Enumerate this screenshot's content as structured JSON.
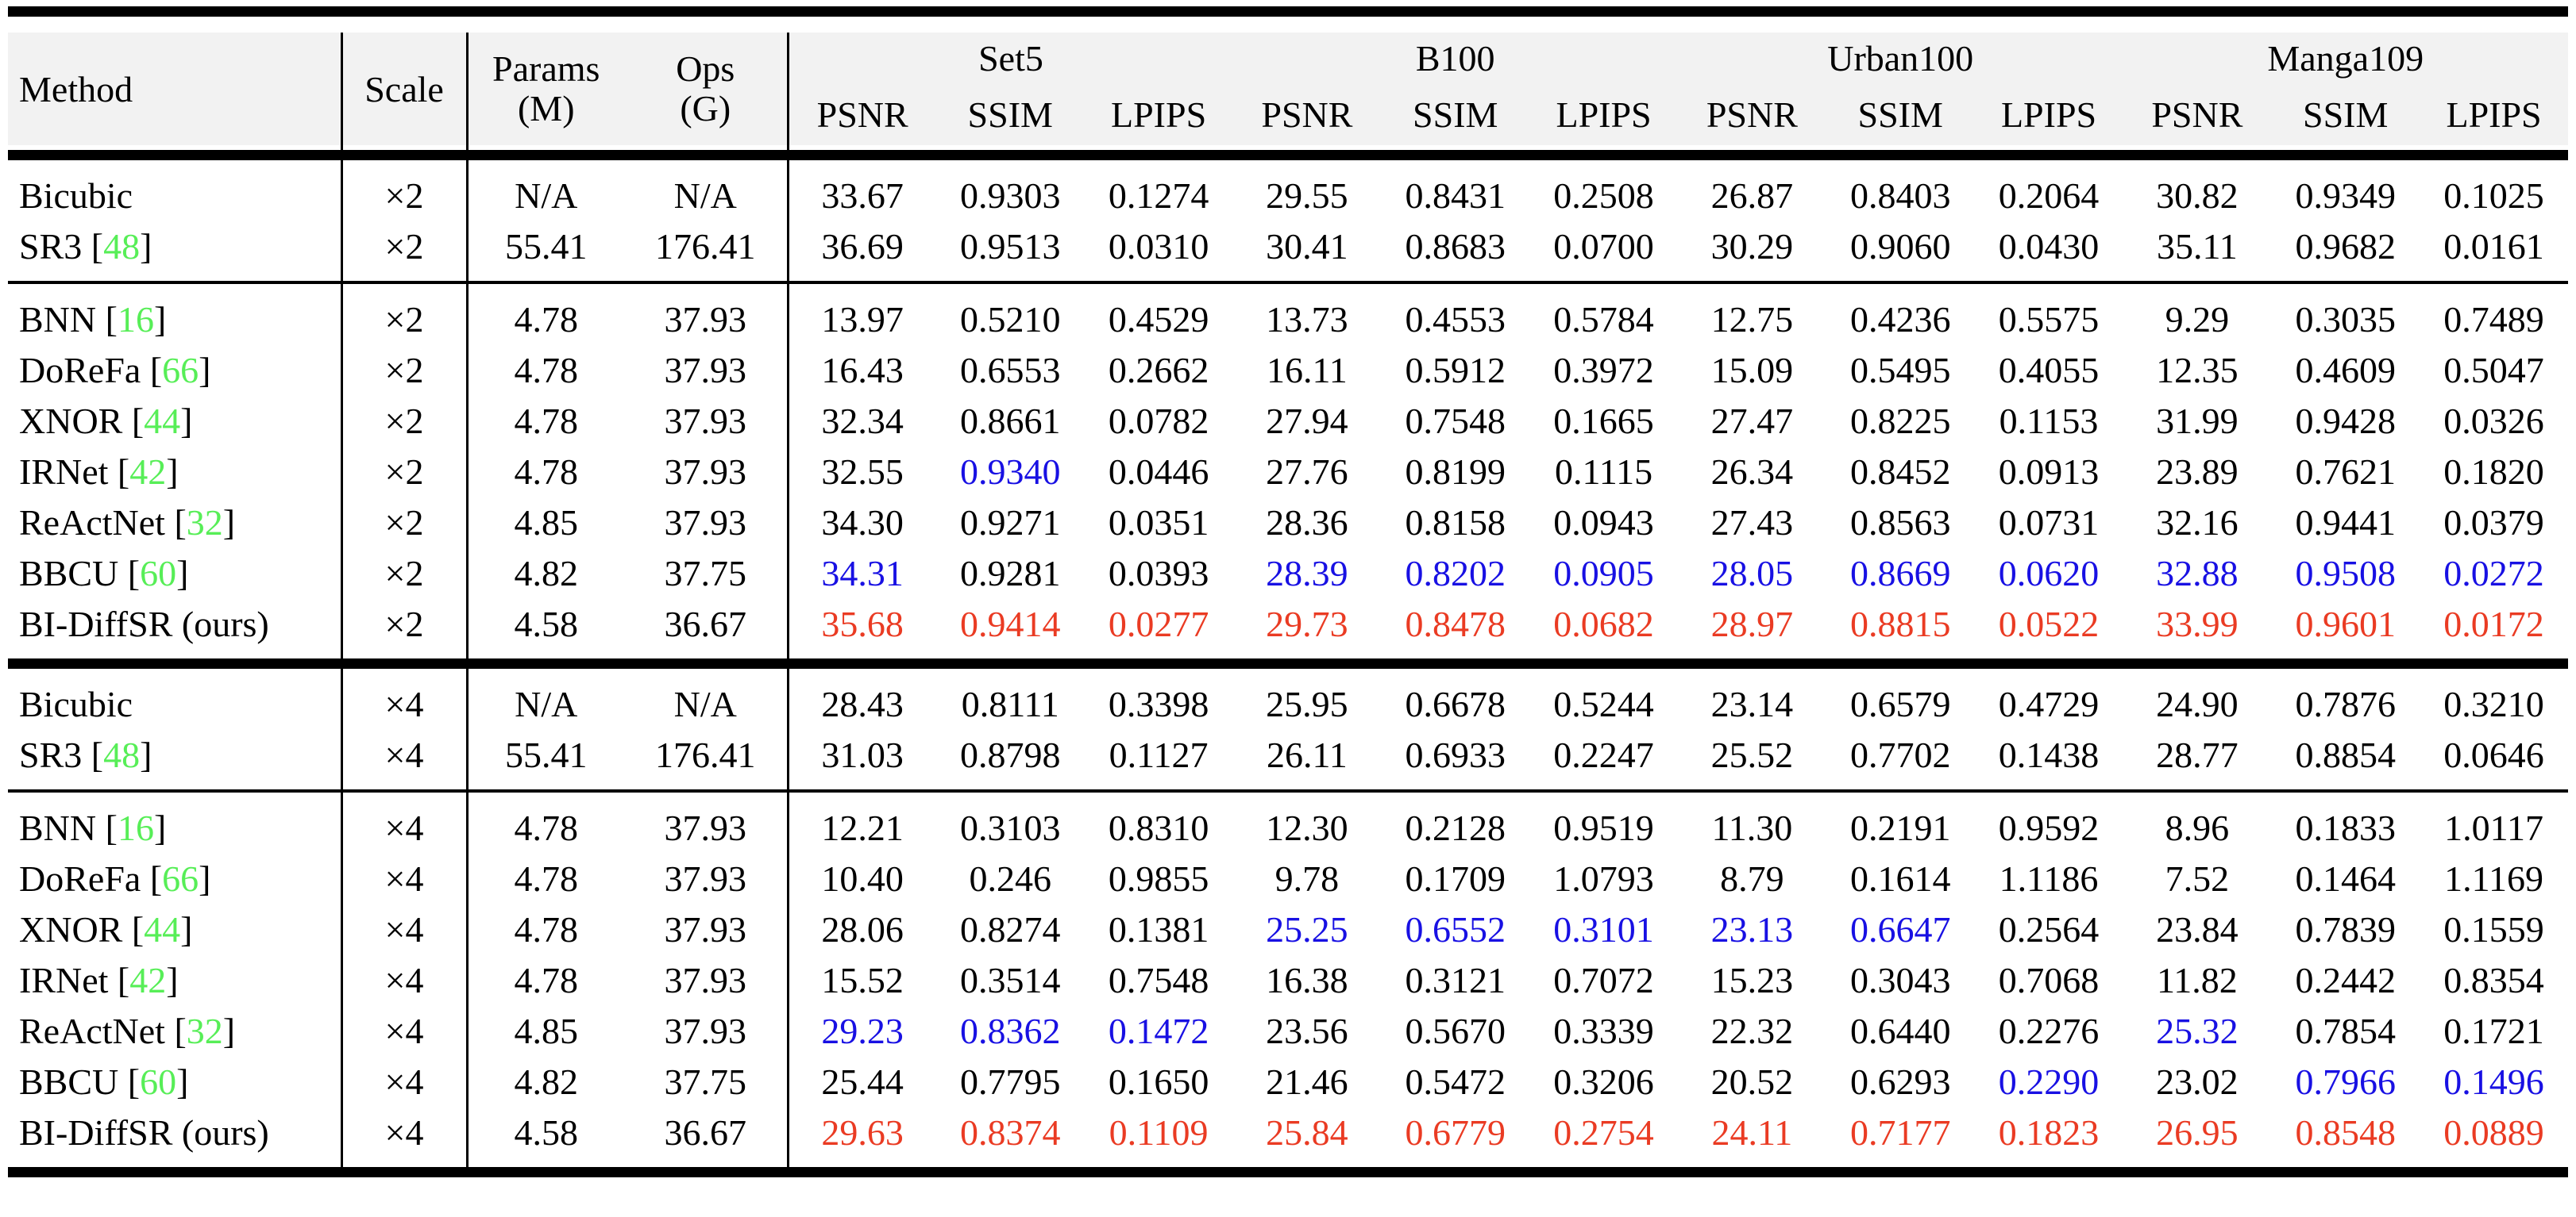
{
  "colors": {
    "best_red": "#ea3b23",
    "second_blue": "#1810e3",
    "citation_green": "#57ee57",
    "header_bg": "#f2f2f2",
    "rule_black": "#000000",
    "page_bg": "#ffffff"
  },
  "table": {
    "header": {
      "method": "Method",
      "scale": "Scale",
      "params_line1": "Params",
      "params_line2": "(M)",
      "ops_line1": "Ops",
      "ops_line2": "(G)",
      "datasets": [
        "Set5",
        "B100",
        "Urban100",
        "Manga109"
      ],
      "metrics": [
        "PSNR",
        "SSIM",
        "LPIPS"
      ]
    },
    "groups": [
      {
        "rule_after": "thin",
        "rows": [
          {
            "method": "Bicubic",
            "cite": null,
            "scale": "×2",
            "params": "N/A",
            "ops": "N/A",
            "values": [
              "33.67",
              "0.9303",
              "0.1274",
              "29.55",
              "0.8431",
              "0.2508",
              "26.87",
              "0.8403",
              "0.2064",
              "30.82",
              "0.9349",
              "0.1025"
            ],
            "styles": [
              "",
              "",
              "",
              "",
              "",
              "",
              "",
              "",
              "",
              "",
              "",
              ""
            ]
          },
          {
            "method": "SR3",
            "cite": "48",
            "scale": "×2",
            "params": "55.41",
            "ops": "176.41",
            "values": [
              "36.69",
              "0.9513",
              "0.0310",
              "30.41",
              "0.8683",
              "0.0700",
              "30.29",
              "0.9060",
              "0.0430",
              "35.11",
              "0.9682",
              "0.0161"
            ],
            "styles": [
              "",
              "",
              "",
              "",
              "",
              "",
              "",
              "",
              "",
              "",
              "",
              ""
            ]
          }
        ]
      },
      {
        "rule_after": "thick",
        "rows": [
          {
            "method": "BNN",
            "cite": "16",
            "scale": "×2",
            "params": "4.78",
            "ops": "37.93",
            "values": [
              "13.97",
              "0.5210",
              "0.4529",
              "13.73",
              "0.4553",
              "0.5784",
              "12.75",
              "0.4236",
              "0.5575",
              "9.29",
              "0.3035",
              "0.7489"
            ],
            "styles": [
              "",
              "",
              "",
              "",
              "",
              "",
              "",
              "",
              "",
              "",
              "",
              ""
            ]
          },
          {
            "method": "DoReFa",
            "cite": "66",
            "scale": "×2",
            "params": "4.78",
            "ops": "37.93",
            "values": [
              "16.43",
              "0.6553",
              "0.2662",
              "16.11",
              "0.5912",
              "0.3972",
              "15.09",
              "0.5495",
              "0.4055",
              "12.35",
              "0.4609",
              "0.5047"
            ],
            "styles": [
              "",
              "",
              "",
              "",
              "",
              "",
              "",
              "",
              "",
              "",
              "",
              ""
            ]
          },
          {
            "method": "XNOR",
            "cite": "44",
            "scale": "×2",
            "params": "4.78",
            "ops": "37.93",
            "values": [
              "32.34",
              "0.8661",
              "0.0782",
              "27.94",
              "0.7548",
              "0.1665",
              "27.47",
              "0.8225",
              "0.1153",
              "31.99",
              "0.9428",
              "0.0326"
            ],
            "styles": [
              "",
              "",
              "",
              "",
              "",
              "",
              "",
              "",
              "",
              "",
              "",
              ""
            ]
          },
          {
            "method": "IRNet",
            "cite": "42",
            "scale": "×2",
            "params": "4.78",
            "ops": "37.93",
            "values": [
              "32.55",
              "0.9340",
              "0.0446",
              "27.76",
              "0.8199",
              "0.1115",
              "26.34",
              "0.8452",
              "0.0913",
              "23.89",
              "0.7621",
              "0.1820"
            ],
            "styles": [
              "",
              "b",
              "",
              "",
              "",
              "",
              "",
              "",
              "",
              "",
              "",
              ""
            ]
          },
          {
            "method": "ReActNet",
            "cite": "32",
            "scale": "×2",
            "params": "4.85",
            "ops": "37.93",
            "values": [
              "34.30",
              "0.9271",
              "0.0351",
              "28.36",
              "0.8158",
              "0.0943",
              "27.43",
              "0.8563",
              "0.0731",
              "32.16",
              "0.9441",
              "0.0379"
            ],
            "styles": [
              "",
              "",
              "",
              "",
              "",
              "",
              "",
              "",
              "",
              "",
              "",
              ""
            ]
          },
          {
            "method": "BBCU",
            "cite": "60",
            "scale": "×2",
            "params": "4.82",
            "ops": "37.75",
            "values": [
              "34.31",
              "0.9281",
              "0.0393",
              "28.39",
              "0.8202",
              "0.0905",
              "28.05",
              "0.8669",
              "0.0620",
              "32.88",
              "0.9508",
              "0.0272"
            ],
            "styles": [
              "b",
              "",
              "",
              "b",
              "b",
              "b",
              "b",
              "b",
              "b",
              "b",
              "b",
              "b"
            ]
          },
          {
            "method": "BI-DiffSR (ours)",
            "cite": null,
            "scale": "×2",
            "params": "4.58",
            "ops": "36.67",
            "values": [
              "35.68",
              "0.9414",
              "0.0277",
              "29.73",
              "0.8478",
              "0.0682",
              "28.97",
              "0.8815",
              "0.0522",
              "33.99",
              "0.9601",
              "0.0172"
            ],
            "styles": [
              "r",
              "r",
              "r",
              "r",
              "r",
              "r",
              "r",
              "r",
              "r",
              "r",
              "r",
              "r"
            ]
          }
        ]
      },
      {
        "rule_after": "thin",
        "rows": [
          {
            "method": "Bicubic",
            "cite": null,
            "scale": "×4",
            "params": "N/A",
            "ops": "N/A",
            "values": [
              "28.43",
              "0.8111",
              "0.3398",
              "25.95",
              "0.6678",
              "0.5244",
              "23.14",
              "0.6579",
              "0.4729",
              "24.90",
              "0.7876",
              "0.3210"
            ],
            "styles": [
              "",
              "",
              "",
              "",
              "",
              "",
              "",
              "",
              "",
              "",
              "",
              ""
            ]
          },
          {
            "method": "SR3",
            "cite": "48",
            "scale": "×4",
            "params": "55.41",
            "ops": "176.41",
            "values": [
              "31.03",
              "0.8798",
              "0.1127",
              "26.11",
              "0.6933",
              "0.2247",
              "25.52",
              "0.7702",
              "0.1438",
              "28.77",
              "0.8854",
              "0.0646"
            ],
            "styles": [
              "",
              "",
              "",
              "",
              "",
              "",
              "",
              "",
              "",
              "",
              "",
              ""
            ]
          }
        ]
      },
      {
        "rule_after": "thick",
        "rows": [
          {
            "method": "BNN",
            "cite": "16",
            "scale": "×4",
            "params": "4.78",
            "ops": "37.93",
            "values": [
              "12.21",
              "0.3103",
              "0.8310",
              "12.30",
              "0.2128",
              "0.9519",
              "11.30",
              "0.2191",
              "0.9592",
              "8.96",
              "0.1833",
              "1.0117"
            ],
            "styles": [
              "",
              "",
              "",
              "",
              "",
              "",
              "",
              "",
              "",
              "",
              "",
              ""
            ]
          },
          {
            "method": "DoReFa",
            "cite": "66",
            "scale": "×4",
            "params": "4.78",
            "ops": "37.93",
            "values": [
              "10.40",
              "0.246",
              "0.9855",
              "9.78",
              "0.1709",
              "1.0793",
              "8.79",
              "0.1614",
              "1.1186",
              "7.52",
              "0.1464",
              "1.1169"
            ],
            "styles": [
              "",
              "",
              "",
              "",
              "",
              "",
              "",
              "",
              "",
              "",
              "",
              ""
            ]
          },
          {
            "method": "XNOR",
            "cite": "44",
            "scale": "×4",
            "params": "4.78",
            "ops": "37.93",
            "values": [
              "28.06",
              "0.8274",
              "0.1381",
              "25.25",
              "0.6552",
              "0.3101",
              "23.13",
              "0.6647",
              "0.2564",
              "23.84",
              "0.7839",
              "0.1559"
            ],
            "styles": [
              "",
              "",
              "",
              "b",
              "b",
              "b",
              "b",
              "b",
              "",
              "",
              "",
              ""
            ]
          },
          {
            "method": "IRNet",
            "cite": "42",
            "scale": "×4",
            "params": "4.78",
            "ops": "37.93",
            "values": [
              "15.52",
              "0.3514",
              "0.7548",
              "16.38",
              "0.3121",
              "0.7072",
              "15.23",
              "0.3043",
              "0.7068",
              "11.82",
              "0.2442",
              "0.8354"
            ],
            "styles": [
              "",
              "",
              "",
              "",
              "",
              "",
              "",
              "",
              "",
              "",
              "",
              ""
            ]
          },
          {
            "method": "ReActNet",
            "cite": "32",
            "scale": "×4",
            "params": "4.85",
            "ops": "37.93",
            "values": [
              "29.23",
              "0.8362",
              "0.1472",
              "23.56",
              "0.5670",
              "0.3339",
              "22.32",
              "0.6440",
              "0.2276",
              "25.32",
              "0.7854",
              "0.1721"
            ],
            "styles": [
              "b",
              "b",
              "b",
              "",
              "",
              "",
              "",
              "",
              "",
              "b",
              "",
              ""
            ]
          },
          {
            "method": "BBCU",
            "cite": "60",
            "scale": "×4",
            "params": "4.82",
            "ops": "37.75",
            "values": [
              "25.44",
              "0.7795",
              "0.1650",
              "21.46",
              "0.5472",
              "0.3206",
              "20.52",
              "0.6293",
              "0.2290",
              "23.02",
              "0.7966",
              "0.1496"
            ],
            "styles": [
              "",
              "",
              "",
              "",
              "",
              "",
              "",
              "",
              "b",
              "",
              "b",
              "b"
            ]
          },
          {
            "method": "BI-DiffSR (ours)",
            "cite": null,
            "scale": "×4",
            "params": "4.58",
            "ops": "36.67",
            "values": [
              "29.63",
              "0.8374",
              "0.1109",
              "25.84",
              "0.6779",
              "0.2754",
              "24.11",
              "0.7177",
              "0.1823",
              "26.95",
              "0.8548",
              "0.0889"
            ],
            "styles": [
              "r",
              "r",
              "r",
              "r",
              "r",
              "r",
              "r",
              "r",
              "r",
              "r",
              "r",
              "r"
            ]
          }
        ]
      }
    ]
  }
}
